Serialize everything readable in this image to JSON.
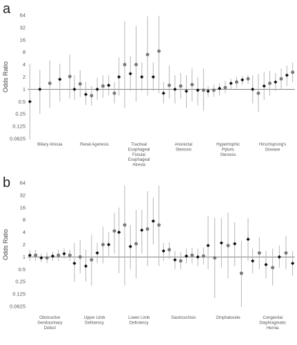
{
  "chart_data": [
    {
      "panel": "a",
      "type": "scatter",
      "ylabel": "Odds Ratio",
      "yscale": "log2",
      "ylim": [
        0.0625,
        64
      ],
      "yticks": [
        "0.0625",
        "0.125",
        "0.25",
        "0.5",
        "1",
        "2",
        "4",
        "8",
        "16",
        "32",
        "64"
      ],
      "reference_line": 1,
      "series": [
        {
          "marker": "black-diamond"
        },
        {
          "marker": "grey-circle"
        }
      ],
      "groups": [
        {
          "label": [
            "Biliary Atresia"
          ],
          "estimates": [
            {
              "s": 0,
              "or": 0.5,
              "lo": 0.06,
              "hi": 4.2
            },
            {
              "s": 0,
              "or": 1.0,
              "lo": 0.25,
              "hi": 3.0
            },
            {
              "s": 1,
              "or": 1.4,
              "lo": 0.35,
              "hi": 5.0
            },
            {
              "s": 0,
              "or": 1.75,
              "lo": 0.5,
              "hi": 4.2
            },
            {
              "s": 1,
              "or": 2.05,
              "lo": 0.6,
              "hi": 7.0
            }
          ]
        },
        {
          "label": [
            "Renal Agenesis"
          ],
          "estimates": [
            {
              "s": 0,
              "or": 1.0,
              "lo": 0.55,
              "hi": 2.2
            },
            {
              "s": 1,
              "or": 1.35,
              "lo": 0.65,
              "hi": 2.9
            },
            {
              "s": 0,
              "or": 0.75,
              "lo": 0.42,
              "hi": 1.5
            },
            {
              "s": 1,
              "or": 0.7,
              "lo": 0.4,
              "hi": 1.2
            },
            {
              "s": 0,
              "or": 1.0,
              "lo": 0.55,
              "hi": 1.9
            },
            {
              "s": 1,
              "or": 1.2,
              "lo": 0.62,
              "hi": 2.2
            },
            {
              "s": 0,
              "or": 1.25,
              "lo": 0.7,
              "hi": 2.2
            },
            {
              "s": 1,
              "or": 0.8,
              "lo": 0.45,
              "hi": 1.5
            }
          ]
        },
        {
          "label": [
            "Tracheal",
            "Esophageal",
            "Fistula/",
            "Esophageal",
            "Atresia"
          ],
          "estimates": [
            {
              "s": 0,
              "or": 2.0,
              "lo": 0.7,
              "hi": 6.0
            },
            {
              "s": 1,
              "or": 4.0,
              "lo": 0.35,
              "hi": 45
            },
            {
              "s": 0,
              "or": 2.4,
              "lo": 0.9,
              "hi": 6.5
            },
            {
              "s": 1,
              "or": 4.0,
              "lo": 0.5,
              "hi": 35
            },
            {
              "s": 0,
              "or": 2.0,
              "lo": 0.9,
              "hi": 4.5
            },
            {
              "s": 1,
              "or": 7.0,
              "lo": 0.7,
              "hi": 60
            },
            {
              "s": 0,
              "or": 2.0,
              "lo": 0.9,
              "hi": 4.5
            },
            {
              "s": 1,
              "or": 8.5,
              "lo": 0.8,
              "hi": 62
            }
          ]
        },
        {
          "label": [
            "Anorectal",
            "Stenosis"
          ],
          "estimates": [
            {
              "s": 0,
              "or": 0.8,
              "lo": 0.45,
              "hi": 1.5
            },
            {
              "s": 1,
              "or": 1.25,
              "lo": 0.6,
              "hi": 3.8
            },
            {
              "s": 0,
              "or": 1.0,
              "lo": 0.45,
              "hi": 2.2
            },
            {
              "s": 1,
              "or": 1.2,
              "lo": 0.6,
              "hi": 2.5
            },
            {
              "s": 0,
              "or": 0.9,
              "lo": 0.35,
              "hi": 2.2
            },
            {
              "s": 1,
              "or": 1.3,
              "lo": 0.5,
              "hi": 3.2
            },
            {
              "s": 0,
              "or": 0.95,
              "lo": 0.4,
              "hi": 2.0
            },
            {
              "s": 1,
              "or": 0.95,
              "lo": 0.3,
              "hi": 3.2
            }
          ]
        },
        {
          "label": [
            "Hypertrophic",
            "Pyloric",
            "Stenosis"
          ],
          "estimates": [
            {
              "s": 0,
              "or": 0.9,
              "lo": 0.65,
              "hi": 1.2
            },
            {
              "s": 1,
              "or": 0.95,
              "lo": 0.65,
              "hi": 1.3
            },
            {
              "s": 0,
              "or": 1.05,
              "lo": 0.7,
              "hi": 1.4
            },
            {
              "s": 1,
              "or": 1.1,
              "lo": 0.8,
              "hi": 1.6
            },
            {
              "s": 0,
              "or": 1.4,
              "lo": 1.0,
              "hi": 1.8
            },
            {
              "s": 1,
              "or": 1.5,
              "lo": 1.05,
              "hi": 2.0
            },
            {
              "s": 0,
              "or": 1.7,
              "lo": 1.3,
              "hi": 2.1
            },
            {
              "s": 1,
              "or": 1.8,
              "lo": 1.35,
              "hi": 2.2
            }
          ]
        },
        {
          "label": [
            "Hirschsprung's",
            "Disease"
          ],
          "estimates": [
            {
              "s": 0,
              "or": 1.0,
              "lo": 0.45,
              "hi": 2.2
            },
            {
              "s": 1,
              "or": 0.8,
              "lo": 0.28,
              "hi": 2.4
            },
            {
              "s": 0,
              "or": 1.2,
              "lo": 0.55,
              "hi": 2.6
            },
            {
              "s": 1,
              "or": 1.4,
              "lo": 0.7,
              "hi": 2.8
            },
            {
              "s": 0,
              "or": 1.5,
              "lo": 0.9,
              "hi": 2.5
            },
            {
              "s": 1,
              "or": 1.8,
              "lo": 1.0,
              "hi": 3.2
            },
            {
              "s": 0,
              "or": 2.2,
              "lo": 1.2,
              "hi": 3.8
            },
            {
              "s": 1,
              "or": 2.6,
              "lo": 1.5,
              "hi": 4.5
            }
          ]
        }
      ]
    },
    {
      "panel": "b",
      "type": "scatter",
      "ylabel": "Odds Ratio",
      "yscale": "log2",
      "ylim": [
        0.0625,
        64
      ],
      "yticks": [
        "0.0625",
        "0.125",
        "0.25",
        "0.5",
        "1",
        "2",
        "4",
        "8",
        "16",
        "32",
        "64"
      ],
      "reference_line": 1,
      "series": [
        {
          "marker": "black-diamond"
        },
        {
          "marker": "grey-circle"
        }
      ],
      "groups": [
        {
          "label": [
            "Obstructive",
            "Genitourinary",
            "Defect"
          ],
          "estimates": [
            {
              "s": 0,
              "or": 1.1,
              "lo": 0.8,
              "hi": 1.5
            },
            {
              "s": 1,
              "or": 1.1,
              "lo": 0.8,
              "hi": 1.5
            },
            {
              "s": 0,
              "or": 0.95,
              "lo": 0.75,
              "hi": 1.2
            },
            {
              "s": 1,
              "or": 0.95,
              "lo": 0.7,
              "hi": 1.3
            },
            {
              "s": 0,
              "or": 1.05,
              "lo": 0.8,
              "hi": 1.35
            },
            {
              "s": 1,
              "or": 1.1,
              "lo": 0.8,
              "hi": 1.5
            },
            {
              "s": 0,
              "or": 1.2,
              "lo": 0.9,
              "hi": 1.6
            },
            {
              "s": 1,
              "or": 1.1,
              "lo": 0.8,
              "hi": 1.5
            }
          ]
        },
        {
          "label": [
            "Upper Limb",
            "Deficiency"
          ],
          "estimates": [
            {
              "s": 0,
              "or": 0.7,
              "lo": 0.25,
              "hi": 2.2
            },
            {
              "s": 1,
              "or": 1.0,
              "lo": 0.4,
              "hi": 2.6
            },
            {
              "s": 0,
              "or": 0.6,
              "lo": 0.25,
              "hi": 1.5
            },
            {
              "s": 1,
              "or": 0.85,
              "lo": 0.2,
              "hi": 3.5
            },
            {
              "s": 0,
              "or": 1.25,
              "lo": 0.7,
              "hi": 2.2
            },
            {
              "s": 1,
              "or": 2.0,
              "lo": 0.7,
              "hi": 5.5
            },
            {
              "s": 0,
              "or": 2.0,
              "lo": 1.0,
              "hi": 4.0
            },
            {
              "s": 1,
              "or": 4.3,
              "lo": 1.2,
              "hi": 12
            }
          ]
        },
        {
          "label": [
            "Lower Limb",
            "Deficiency"
          ],
          "estimates": [
            {
              "s": 0,
              "or": 4.0,
              "lo": 0.4,
              "hi": 16
            },
            {
              "s": 1,
              "or": 6.0,
              "lo": 0.2,
              "hi": 55
            },
            {
              "s": 0,
              "or": 1.8,
              "lo": 0.5,
              "hi": 6.0
            },
            {
              "s": 1,
              "or": 2.1,
              "lo": 0.3,
              "hi": 14
            },
            {
              "s": 0,
              "or": 4.5,
              "lo": 1.2,
              "hi": 14
            },
            {
              "s": 1,
              "or": 4.8,
              "lo": 0.6,
              "hi": 40
            },
            {
              "s": 0,
              "or": 7.5,
              "lo": 2.0,
              "hi": 28
            },
            {
              "s": 1,
              "or": 6.0,
              "lo": 0.6,
              "hi": 55
            }
          ]
        },
        {
          "label": [
            "Gastroschisis"
          ],
          "estimates": [
            {
              "s": 0,
              "or": 1.4,
              "lo": 0.8,
              "hi": 2.2
            },
            {
              "s": 1,
              "or": 1.5,
              "lo": 0.9,
              "hi": 2.3
            },
            {
              "s": 0,
              "or": 0.85,
              "lo": 0.5,
              "hi": 1.4
            },
            {
              "s": 1,
              "or": 0.8,
              "lo": 0.5,
              "hi": 1.3
            },
            {
              "s": 0,
              "or": 1.05,
              "lo": 0.7,
              "hi": 1.6
            },
            {
              "s": 1,
              "or": 1.1,
              "lo": 0.7,
              "hi": 1.7
            },
            {
              "s": 0,
              "or": 1.0,
              "lo": 0.6,
              "hi": 1.6
            },
            {
              "s": 1,
              "or": 1.05,
              "lo": 0.65,
              "hi": 1.7
            }
          ]
        },
        {
          "label": [
            "Omphalocele"
          ],
          "estimates": [
            {
              "s": 0,
              "or": 1.9,
              "lo": 0.5,
              "hi": 10
            },
            {
              "s": 1,
              "or": 0.95,
              "lo": 0.1,
              "hi": 9
            },
            {
              "s": 0,
              "or": 2.2,
              "lo": 0.55,
              "hi": 9
            },
            {
              "s": 1,
              "or": 1.9,
              "lo": 0.3,
              "hi": 12
            },
            {
              "s": 0,
              "or": 2.1,
              "lo": 0.6,
              "hi": 7
            },
            {
              "s": 1,
              "or": 0.4,
              "lo": 0.06,
              "hi": 2.5
            },
            {
              "s": 0,
              "or": 2.7,
              "lo": 0.8,
              "hi": 9
            }
          ]
        },
        {
          "label": [
            "Congenital",
            "Diaphragmatic",
            "Hernia"
          ],
          "estimates": [
            {
              "s": 0,
              "or": 0.8,
              "lo": 0.4,
              "hi": 1.6
            },
            {
              "s": 1,
              "or": 1.25,
              "lo": 0.5,
              "hi": 3.0
            },
            {
              "s": 0,
              "or": 0.65,
              "lo": 0.3,
              "hi": 1.4
            },
            {
              "s": 1,
              "or": 0.55,
              "lo": 0.2,
              "hi": 1.6
            },
            {
              "s": 0,
              "or": 1.0,
              "lo": 0.55,
              "hi": 1.9
            },
            {
              "s": 1,
              "or": 1.25,
              "lo": 0.5,
              "hi": 3.2
            },
            {
              "s": 0,
              "or": 0.7,
              "lo": 0.35,
              "hi": 1.4
            }
          ]
        }
      ]
    }
  ],
  "colors": {
    "ci_line": "#b5b5b5",
    "diamond": "#111111",
    "circle": "#7a7a7a",
    "reference": "#555555",
    "text": "#555555"
  }
}
